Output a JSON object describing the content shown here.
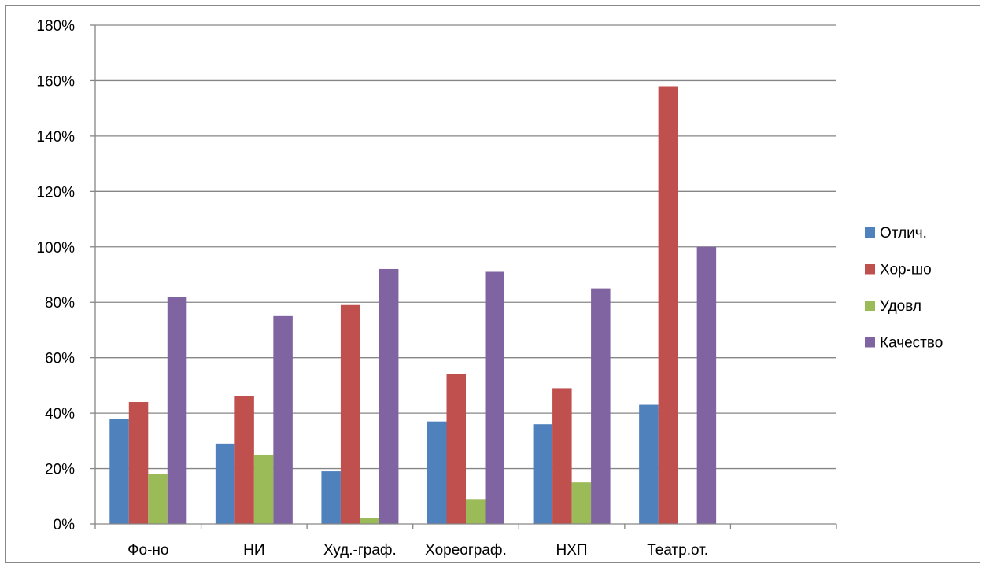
{
  "chart_data": {
    "type": "bar",
    "title": "",
    "xlabel": "",
    "ylabel": "",
    "ylim": [
      0,
      180
    ],
    "y_ticks": [
      0,
      20,
      40,
      60,
      80,
      100,
      120,
      140,
      160,
      180
    ],
    "y_tick_labels": [
      "0%",
      "20%",
      "40%",
      "60%",
      "80%",
      "100%",
      "120%",
      "140%",
      "160%",
      "180%"
    ],
    "grid": true,
    "legend_position": "right",
    "categories": [
      "Фо-но",
      "НИ",
      "Худ.-граф.",
      "Хореограф.",
      "НХП",
      "Театр.от.",
      ""
    ],
    "series": [
      {
        "name": "Отлич.",
        "color": "#4F81BD",
        "values": [
          38,
          29,
          19,
          37,
          36,
          43,
          null
        ]
      },
      {
        "name": "Хор-шо",
        "color": "#C0504D",
        "values": [
          44,
          46,
          79,
          54,
          49,
          158,
          null
        ]
      },
      {
        "name": "Удовл",
        "color": "#9BBB59",
        "values": [
          18,
          25,
          2,
          9,
          15,
          0,
          null
        ]
      },
      {
        "name": "Качество",
        "color": "#8064A2",
        "values": [
          82,
          75,
          92,
          91,
          85,
          100,
          null
        ]
      }
    ]
  }
}
